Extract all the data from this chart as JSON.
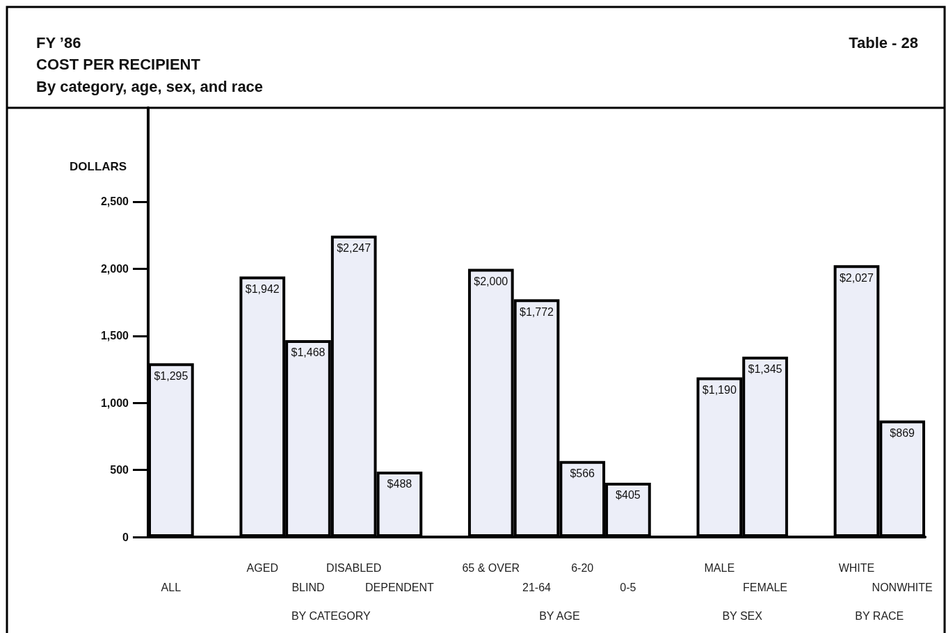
{
  "chart_data": {
    "type": "bar",
    "title": "COST PER RECIPIENT",
    "subtitle": "By category, age, sex, and race",
    "ylabel": "DOLLARS",
    "annotations": [
      "FY ’86",
      "Table - 28",
      "BY CATEGORY",
      "BY AGE",
      "BY SEX",
      "BY RACE"
    ],
    "categories": [
      "ALL",
      null,
      "AGED",
      "BLIND",
      "DISABLED",
      "DEPENDENT",
      null,
      "65 & OVER",
      "21-64",
      "6-20",
      "0-5",
      null,
      "MALE",
      "FEMALE",
      null,
      "WHITE",
      "NONWHITE"
    ],
    "values": [
      1295,
      null,
      1942,
      1468,
      2247,
      488,
      null,
      2000,
      1772,
      566,
      405,
      null,
      1190,
      1345,
      null,
      2027,
      869
    ],
    "value_labels": [
      "$1,295",
      null,
      "$1,942",
      "$1,468",
      "$2,247",
      "$488",
      null,
      "$2,000",
      "$1,772",
      "$566",
      "$405",
      null,
      "$1,190",
      "$1,345",
      null,
      "$2,027",
      "$869"
    ],
    "color": "#eceef8",
    "ylim": [
      0,
      3200
    ],
    "yticks": [
      0,
      500,
      {
        "value": 1000,
        "label": "1,000"
      },
      {
        "value": 1500,
        "label": "1,500"
      },
      {
        "value": 2000,
        "label": "2,000"
      },
      {
        "value": 2500,
        "label": "2,500"
      }
    ],
    "grid": false
  }
}
